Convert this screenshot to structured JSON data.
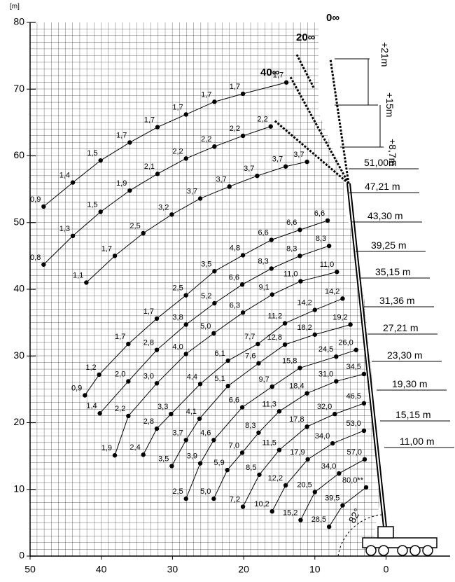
{
  "chart_data": {
    "type": "line",
    "unit_label": "[m]",
    "color": "#000000",
    "xlim": [
      50,
      -9
    ],
    "ylim": [
      0,
      80
    ],
    "xticks": [
      50,
      40,
      30,
      20,
      10,
      0
    ],
    "yticks": [
      0,
      10,
      20,
      30,
      40,
      50,
      60,
      70,
      80
    ],
    "grid": true,
    "series": [
      {
        "name": "51,00m",
        "x": [
          8.2,
          12.1,
          16.1,
          20.1,
          24.1,
          28.1,
          32.2,
          36.2,
          40.3,
          42.3
        ],
        "values": [
          50.3,
          48.9,
          47.4,
          45.1,
          42.7,
          39.1,
          35.6,
          31.8,
          27.2,
          24.1
        ],
        "loads": [
          6.6,
          6.6,
          6.6,
          4.8,
          3.5,
          2.5,
          1.7,
          1.7,
          1.2,
          0.9
        ],
        "load_labels": [
          "6,6",
          "6,6",
          "6,6",
          "4,8",
          "3,5",
          "2,5",
          "1,7",
          "1,7",
          "1,2",
          "0,9"
        ]
      },
      {
        "name": "47,21 m",
        "x": [
          8.0,
          12.1,
          16.1,
          20.2,
          24.1,
          28.1,
          32.2,
          36.2,
          40.2
        ],
        "values": [
          46.5,
          45.0,
          43.1,
          40.7,
          37.9,
          34.7,
          30.9,
          26.2,
          21.4
        ],
        "loads": [
          8.3,
          8.3,
          8.3,
          6.6,
          5.2,
          3.8,
          2.8,
          2.0,
          1.4
        ],
        "load_labels": [
          "8,3",
          "8,3",
          "8,3",
          "6,6",
          "5,2",
          "3,8",
          "2,8",
          "2,0",
          "1,4"
        ]
      },
      {
        "name": "43,30 m",
        "x": [
          6.9,
          12.0,
          16.0,
          20.1,
          24.2,
          28.1,
          32.2,
          36.2,
          38.1
        ],
        "values": [
          42.6,
          41.2,
          39.2,
          36.5,
          33.4,
          30.3,
          25.9,
          21.0,
          15.1
        ],
        "loads": [
          11.0,
          11.0,
          9.1,
          6.3,
          5.0,
          4.0,
          3.0,
          2.2,
          1.9
        ],
        "load_labels": [
          "11,0",
          "11,0",
          "9,1",
          "6,3",
          "5,0",
          "4,0",
          "3,0",
          "2,2",
          "1,9"
        ]
      },
      {
        "name": "39,25 m",
        "x": [
          6.1,
          10.0,
          14.2,
          18.0,
          22.2,
          26.1,
          30.2,
          32.2,
          34.1
        ],
        "values": [
          38.6,
          36.9,
          34.9,
          31.8,
          29.3,
          25.8,
          21.3,
          19.1,
          15.2
        ],
        "loads": [
          14.2,
          14.2,
          11.2,
          7.7,
          6.1,
          4.4,
          3.3,
          2.8,
          2.4
        ],
        "load_labels": [
          "14,2",
          "14,2",
          "11,2",
          "7,7",
          "6,1",
          "4,4",
          "3,3",
          "2,8",
          "2,4"
        ]
      },
      {
        "name": "35,15 m",
        "x": [
          5.0,
          10.0,
          14.2,
          17.9,
          22.2,
          26.2,
          28.1,
          30.1
        ],
        "values": [
          34.7,
          33.2,
          31.7,
          28.9,
          25.5,
          20.6,
          17.4,
          13.5
        ],
        "loads": [
          19.2,
          18.2,
          12.8,
          7.6,
          5.1,
          4.1,
          3.7,
          3.5
        ],
        "load_labels": [
          "19,2",
          "18,2",
          "12,8",
          "7,6",
          "5,1",
          "4,1",
          "3,7",
          "3,5"
        ]
      },
      {
        "name": "31,36 m",
        "x": [
          4.2,
          7.0,
          12.1,
          16.0,
          20.2,
          24.2,
          26.1,
          28.1
        ],
        "values": [
          30.9,
          29.9,
          28.2,
          25.4,
          22.3,
          17.4,
          13.9,
          8.6
        ],
        "loads": [
          26.0,
          24.5,
          15.8,
          9.7,
          6.6,
          4.6,
          3.9,
          2.5
        ],
        "load_labels": [
          "26,0",
          "24,5",
          "15,8",
          "9,7",
          "6,6",
          "4,6",
          "3,9",
          "2,5"
        ]
      },
      {
        "name": "27,21 m",
        "x": [
          3.1,
          7.0,
          11.1,
          15.0,
          17.9,
          20.2,
          22.3,
          24.2
        ],
        "values": [
          27.3,
          26.2,
          24.4,
          21.7,
          18.5,
          15.5,
          12.9,
          8.6
        ],
        "loads": [
          34.5,
          31.0,
          18.4,
          11.3,
          8.3,
          7.0,
          5.9,
          5.0
        ],
        "load_labels": [
          "34,5",
          "31,0",
          "18,4",
          "11,3",
          "8,3",
          "7,0",
          "5,9",
          "5,0"
        ]
      },
      {
        "name": "23,30 m",
        "x": [
          3.1,
          7.2,
          11.1,
          15.0,
          17.8,
          20.1
        ],
        "values": [
          22.9,
          21.3,
          19.4,
          15.9,
          12.2,
          7.4
        ],
        "loads": [
          46.5,
          32.0,
          17.8,
          11.5,
          8.5,
          7.2
        ],
        "load_labels": [
          "46,5",
          "32,0",
          "17,8",
          "11,5",
          "8,5",
          "7,2"
        ]
      },
      {
        "name": "19,30 m",
        "x": [
          3.1,
          7.5,
          11.0,
          14.1,
          16.0
        ],
        "values": [
          18.8,
          16.9,
          14.5,
          10.6,
          6.7
        ],
        "loads": [
          53.0,
          34.0,
          17.9,
          12.2,
          10.2
        ],
        "load_labels": [
          "53,0",
          "34,0",
          "17,9",
          "12,2",
          "10,2"
        ]
      },
      {
        "name": "15,15 m",
        "x": [
          3.0,
          6.6,
          10.0,
          12.0
        ],
        "values": [
          14.5,
          12.4,
          9.6,
          5.4
        ],
        "loads": [
          57.0,
          34.0,
          20.5,
          15.2
        ],
        "load_labels": [
          "57,0",
          "34,0",
          "20,5",
          "15,2"
        ]
      },
      {
        "name": "11,00 m",
        "x": [
          2.8,
          6.1,
          8.0
        ],
        "values": [
          10.3,
          7.6,
          4.4
        ],
        "loads": [
          80.0,
          39.5,
          28.5
        ],
        "load_labels": [
          "80,0**",
          "39,5",
          "28,5"
        ]
      },
      {
        "x": [
          14.0,
          20.1,
          24.1,
          28.1,
          32.1,
          36.0,
          40.1,
          44.0,
          48.1
        ],
        "values": [
          71.0,
          69.3,
          68.1,
          66.2,
          64.3,
          62.0,
          59.3,
          56.0,
          52.4
        ],
        "loads": [
          1.7,
          1.7,
          1.7,
          1.7,
          1.7,
          1.7,
          1.5,
          1.4,
          0.9
        ],
        "load_labels": [
          "1,7",
          "1,7",
          "1,7",
          "1,7",
          "1,7",
          "1,7",
          "1,5",
          "1,4",
          "0,9"
        ]
      },
      {
        "x": [
          16.2,
          20.1,
          24.1,
          28.1,
          32.1,
          36.0,
          40.1,
          44.0,
          48.1
        ],
        "values": [
          64.4,
          63.0,
          61.4,
          59.6,
          57.3,
          54.8,
          51.6,
          48.0,
          43.7
        ],
        "loads": [
          2.2,
          2.2,
          2.2,
          2.2,
          2.1,
          1.9,
          1.5,
          1.3,
          0.8
        ],
        "load_labels": [
          "2,2",
          "2,2",
          "2,2",
          "2,2",
          "2,1",
          "1,9",
          "1,5",
          "1,3",
          "0,8"
        ]
      },
      {
        "x": [
          11.1,
          14.1,
          18.1,
          22.0,
          26.1,
          30.1,
          34.1,
          38.1,
          42.1
        ],
        "values": [
          59.1,
          58.4,
          57.0,
          55.4,
          53.6,
          51.2,
          48.4,
          45.0,
          41.0
        ],
        "loads": [
          3.7,
          3.7,
          3.7,
          3.7,
          3.7,
          3.2,
          2.5,
          1.7,
          1.1
        ],
        "load_labels": [
          "3,7",
          "3,7",
          "3,7",
          "3,7",
          "3,7",
          "3,2",
          "2,5",
          "1,7",
          "1,1"
        ]
      }
    ],
    "annotations": [
      "40∞",
      "20∞",
      "0∞",
      "+21m",
      "+15m",
      "+8,7m",
      "82°"
    ]
  }
}
